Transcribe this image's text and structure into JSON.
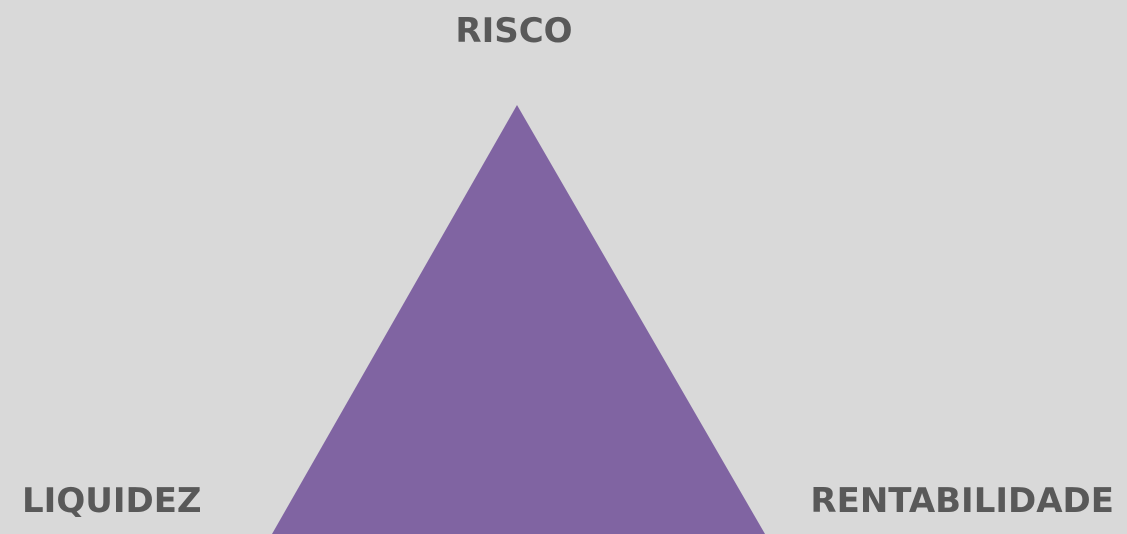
{
  "labels": {
    "top": "RISCO",
    "left": "LIQUIDEZ",
    "right": "RENTABILIDADE"
  }
}
